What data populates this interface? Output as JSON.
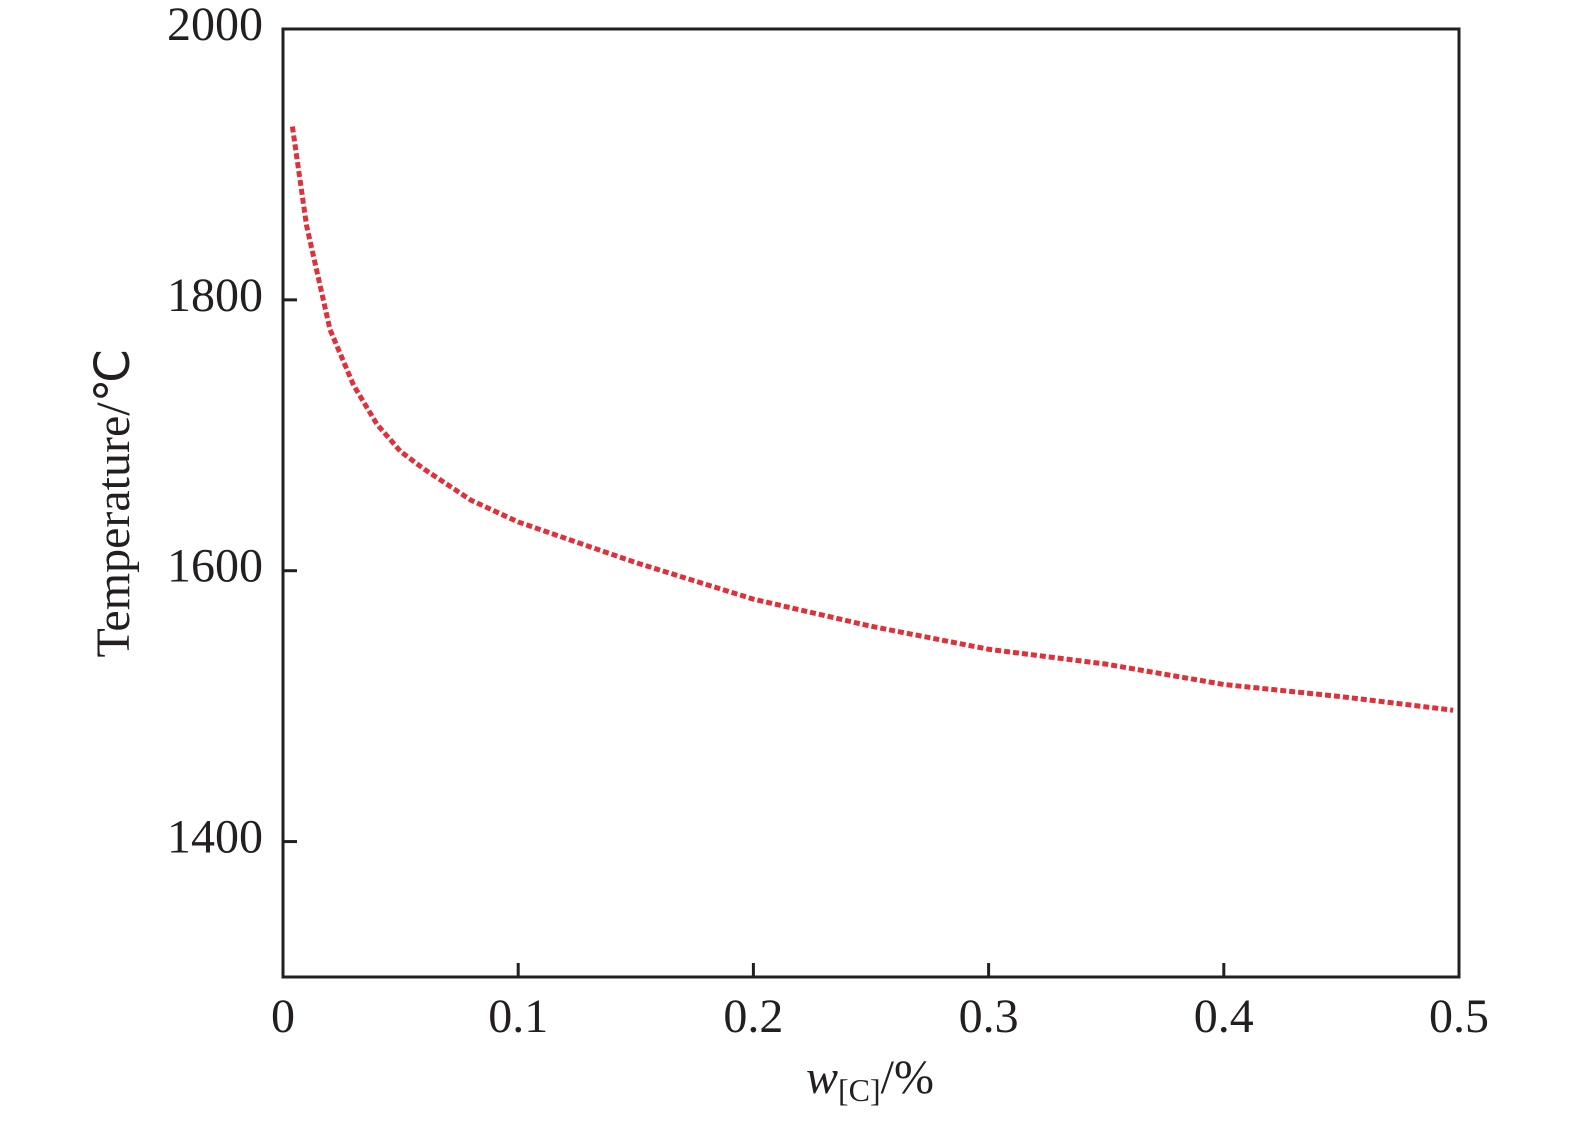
{
  "chart_data": {
    "type": "line",
    "ylabel": "Temperature/℃",
    "xlabel": {
      "symbol": "w",
      "subscript": "[C]",
      "unit": "/%"
    },
    "x": [
      0.004,
      0.01,
      0.02,
      0.03,
      0.04,
      0.05,
      0.06,
      0.08,
      0.1,
      0.15,
      0.2,
      0.25,
      0.3,
      0.35,
      0.4,
      0.45,
      0.4975
    ],
    "series": [
      {
        "color": "#e0303a",
        "dashed": true,
        "values": [
          1928,
          1855,
          1778,
          1737,
          1708,
          1688,
          1675,
          1652,
          1636,
          1606,
          1579,
          1559,
          1542,
          1531,
          1516,
          1507,
          1497
        ]
      }
    ],
    "xlim": [
      0,
      0.5
    ],
    "xticks": [
      0,
      0.1,
      0.2,
      0.3,
      0.4,
      0.5
    ],
    "ylim": [
      1300,
      2000
    ],
    "yticks": [
      1400,
      1600,
      1800,
      2000
    ],
    "grid": false
  }
}
